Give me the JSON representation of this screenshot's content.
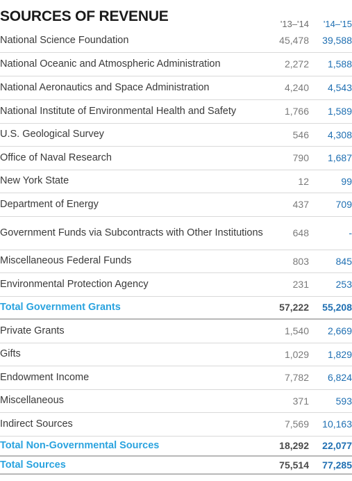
{
  "title": "SOURCES OF REVENUE",
  "columns": {
    "y1": "'13–'14",
    "y2": "'14–'15"
  },
  "rows": [
    {
      "label": "National Science Foundation",
      "v1": "45,478",
      "v2": "39,588"
    },
    {
      "label": "National Oceanic and Atmospheric Administration",
      "v1": "2,272",
      "v2": "1,588"
    },
    {
      "label": "National Aeronautics and Space Administration",
      "v1": "4,240",
      "v2": "4,543"
    },
    {
      "label": "National Institute of Environmental Health and Safety",
      "v1": "1,766",
      "v2": "1,589"
    },
    {
      "label": "U.S. Geological Survey",
      "v1": "546",
      "v2": "4,308"
    },
    {
      "label": "Office of Naval Research",
      "v1": "790",
      "v2": "1,687"
    },
    {
      "label": "New York State",
      "v1": "12",
      "v2": "99"
    },
    {
      "label": "Department of Energy",
      "v1": "437",
      "v2": "709"
    },
    {
      "label": "Government Funds via Subcontracts with Other Institutions",
      "v1": "648",
      "v2": "-"
    },
    {
      "label": "Miscellaneous Federal Funds",
      "v1": "803",
      "v2": "845"
    },
    {
      "label": "Environmental Protection Agency",
      "v1": "231",
      "v2": "253"
    }
  ],
  "total_government": {
    "label": "Total Government Grants",
    "v1": "57,222",
    "v2": "55,208"
  },
  "nongov_rows": [
    {
      "label": "Private Grants",
      "v1": "1,540",
      "v2": "2,669"
    },
    {
      "label": "Gifts",
      "v1": "1,029",
      "v2": "1,829"
    },
    {
      "label": "Endowment Income",
      "v1": "7,782",
      "v2": "6,824"
    },
    {
      "label": "Miscellaneous",
      "v1": "371",
      "v2": "593"
    },
    {
      "label": "Indirect Sources",
      "v1": "7,569",
      "v2": "10,163"
    }
  ],
  "total_nongov": {
    "label": "Total Non-Governmental Sources",
    "v1": "18,292",
    "v2": "22,077"
  },
  "total_sources": {
    "label": "Total Sources",
    "v1": "75,514",
    "v2": "77,285"
  },
  "colors": {
    "accent_blue": "#1f6fb2",
    "total_label_blue": "#2aa3df"
  }
}
